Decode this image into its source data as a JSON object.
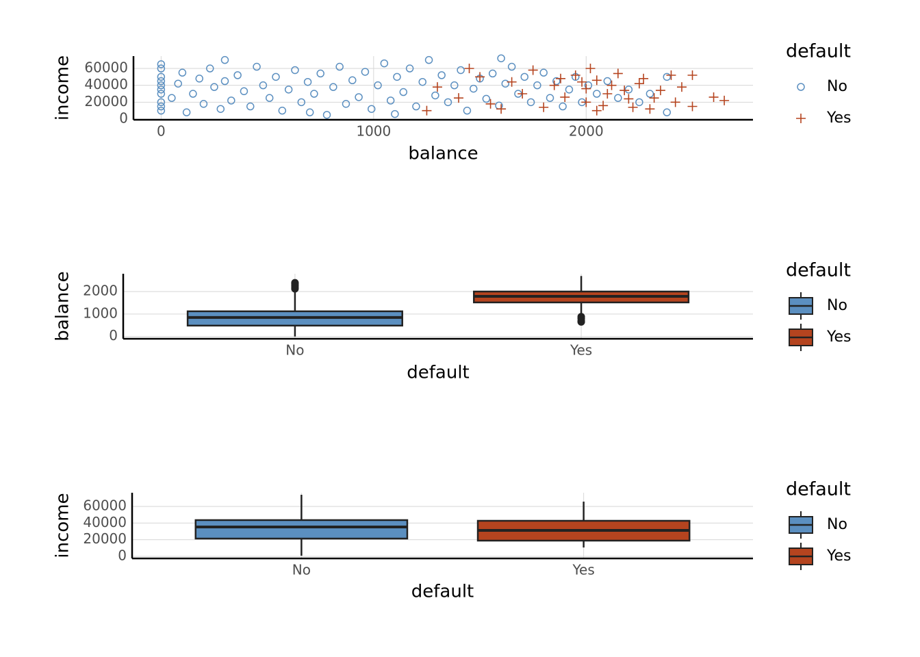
{
  "chart_data": [
    {
      "type": "scatter",
      "xlabel": "balance",
      "ylabel": "income",
      "legend_title": "default",
      "xlim": [
        -130,
        2785
      ],
      "xticks": [
        0,
        1000,
        2000
      ],
      "ylim": [
        -800,
        74600
      ],
      "yticks": [
        0,
        20000,
        40000,
        60000
      ],
      "grid": true,
      "series": [
        {
          "name": "No",
          "color": "#5b8fc0",
          "marker": "circle",
          "x": [
            0,
            0,
            0,
            0,
            0,
            0,
            0,
            0,
            0,
            0,
            50,
            80,
            100,
            120,
            150,
            180,
            200,
            230,
            250,
            280,
            300,
            330,
            360,
            390,
            420,
            450,
            480,
            510,
            540,
            570,
            600,
            630,
            660,
            690,
            720,
            750,
            780,
            810,
            840,
            870,
            900,
            930,
            960,
            990,
            1020,
            1050,
            1080,
            1110,
            1140,
            1170,
            1200,
            1230,
            1260,
            1290,
            1320,
            1350,
            1380,
            1410,
            1440,
            1470,
            1500,
            1530,
            1560,
            1590,
            1620,
            1650,
            1680,
            1710,
            1740,
            1770,
            1800,
            1830,
            1860,
            1890,
            1920,
            1950,
            1980,
            2010,
            2050,
            2100,
            2150,
            2200,
            2250,
            2300,
            2380,
            2380,
            1600,
            300,
            700,
            1100
          ],
          "values": [
            10000,
            20000,
            30000,
            40000,
            50000,
            60000,
            65000,
            15000,
            45000,
            35000,
            25000,
            42000,
            55000,
            8000,
            30000,
            48000,
            18000,
            60000,
            38000,
            12000,
            45000,
            22000,
            52000,
            33000,
            15000,
            62000,
            40000,
            25000,
            50000,
            10000,
            35000,
            58000,
            20000,
            44000,
            30000,
            54000,
            5000,
            38000,
            62000,
            18000,
            46000,
            26000,
            56000,
            12000,
            40000,
            66000,
            22000,
            50000,
            32000,
            60000,
            15000,
            44000,
            70000,
            28000,
            52000,
            20000,
            40000,
            58000,
            10000,
            36000,
            48000,
            24000,
            54000,
            16000,
            42000,
            62000,
            30000,
            50000,
            20000,
            40000,
            55000,
            25000,
            45000,
            15000,
            35000,
            50000,
            20000,
            40000,
            30000,
            45000,
            25000,
            35000,
            20000,
            30000,
            8000,
            50000,
            72000,
            70000,
            8000,
            6000
          ]
        },
        {
          "name": "Yes",
          "color": "#b5441f",
          "marker": "plus",
          "x": [
            1300,
            1400,
            1500,
            1550,
            1650,
            1700,
            1750,
            1800,
            1850,
            1900,
            1950,
            2000,
            2000,
            2050,
            2080,
            2100,
            2150,
            2200,
            2250,
            2300,
            2350,
            2400,
            2450,
            2500,
            2500,
            2600,
            2650,
            1250,
            1450,
            1600,
            2020,
            2120,
            2180,
            2270,
            2420,
            2050,
            1880,
            2220,
            2320,
            1980
          ],
          "values": [
            38000,
            25000,
            50000,
            18000,
            44000,
            30000,
            58000,
            14000,
            40000,
            26000,
            52000,
            20000,
            36000,
            46000,
            16000,
            30000,
            54000,
            24000,
            42000,
            12000,
            34000,
            52000,
            38000,
            52000,
            15000,
            26000,
            22000,
            10000,
            60000,
            12000,
            60000,
            40000,
            34000,
            48000,
            20000,
            10000,
            48000,
            14000,
            25000,
            44000
          ]
        }
      ]
    },
    {
      "type": "box",
      "xlabel": "default",
      "ylabel": "balance",
      "legend_title": "default",
      "categories": [
        "No",
        "Yes"
      ],
      "ylim": [
        -100,
        2790
      ],
      "yticks": [
        0,
        1000,
        2000
      ],
      "grid": true,
      "series": [
        {
          "name": "No",
          "color": "#5b8fc0",
          "min": 0,
          "q1": 485,
          "median": 848,
          "q3": 1121,
          "max": 2070,
          "outliers": [
            2120,
            2180,
            2250,
            2300,
            2360,
            2390
          ]
        },
        {
          "name": "Yes",
          "color": "#b5441f",
          "min": 910,
          "q1": 1515,
          "median": 1788,
          "q3": 2000,
          "max": 2690,
          "outliers": [
            880,
            800,
            700,
            650
          ]
        }
      ]
    },
    {
      "type": "box",
      "xlabel": "default",
      "ylabel": "income",
      "legend_title": "default",
      "categories": [
        "No",
        "Yes"
      ],
      "ylim": [
        -2500,
        76400
      ],
      "yticks": [
        0,
        20000,
        40000,
        60000
      ],
      "grid": true,
      "series": [
        {
          "name": "No",
          "color": "#5b8fc0",
          "min": 820,
          "q1": 21370,
          "median": 35340,
          "q3": 43560,
          "max": 73970,
          "outliers": []
        },
        {
          "name": "Yes",
          "color": "#b5441f",
          "min": 10680,
          "q1": 18900,
          "median": 31230,
          "q3": 42740,
          "max": 65750,
          "outliers": []
        }
      ]
    }
  ]
}
